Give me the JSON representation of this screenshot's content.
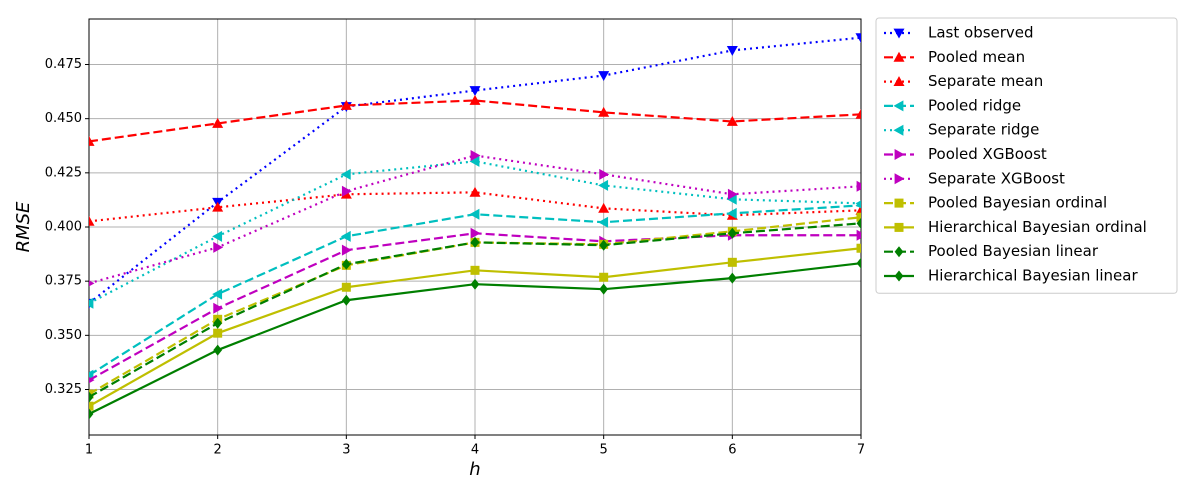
{
  "chart_data": {
    "type": "line",
    "x_label": "h",
    "y_label": "RMSE",
    "x": [
      1,
      2,
      3,
      4,
      5,
      6,
      7
    ],
    "xlim": [
      1,
      7
    ],
    "xticks": [
      1,
      2,
      3,
      4,
      5,
      6,
      7
    ],
    "ylim": [
      0.304,
      0.496
    ],
    "yticks": [
      0.325,
      {
        "value": 0.35,
        "label": "0.350"
      },
      0.375,
      {
        "value": 0.4,
        "label": "0.400"
      },
      0.425,
      {
        "value": 0.45,
        "label": "0.450"
      },
      0.475
    ],
    "grid": true,
    "legend": "outside right",
    "series": [
      {
        "name": "Last observed",
        "color": "#0000ff",
        "linestyle": "dotted",
        "marker": "v",
        "values": [
          0.3648,
          0.4114,
          0.4556,
          0.463,
          0.4699,
          0.4815,
          0.4874
        ]
      },
      {
        "name": "Pooled mean",
        "color": "#ff0000",
        "linestyle": "dashed",
        "marker": "^",
        "values": [
          0.4395,
          0.4478,
          0.4561,
          0.4584,
          0.4529,
          0.4487,
          0.452
        ]
      },
      {
        "name": "Separate mean",
        "color": "#ff0000",
        "linestyle": "dotted",
        "marker": "^",
        "values": [
          0.4026,
          0.4091,
          0.4151,
          0.416,
          0.4086,
          0.4054,
          0.4077
        ]
      },
      {
        "name": "Pooled ridge",
        "color": "#00bfbf",
        "linestyle": "dashed",
        "marker": "<",
        "values": [
          0.3316,
          0.369,
          0.3957,
          0.4059,
          0.4022,
          0.4063,
          0.41
        ]
      },
      {
        "name": "Separate ridge",
        "color": "#00bfbf",
        "linestyle": "dotted",
        "marker": "<",
        "values": [
          0.3648,
          0.3957,
          0.4243,
          0.4303,
          0.4192,
          0.4128,
          0.4109
        ]
      },
      {
        "name": "Pooled XGBoost",
        "color": "#bf00bf",
        "linestyle": "dashed",
        "marker": ">",
        "values": [
          0.3293,
          0.3625,
          0.3893,
          0.3971,
          0.3934,
          0.3962,
          0.3962
        ]
      },
      {
        "name": "Separate XGBoost",
        "color": "#bf00bf",
        "linestyle": "dotted",
        "marker": ">",
        "values": [
          0.374,
          0.3906,
          0.4165,
          0.433,
          0.4243,
          0.4151,
          0.4188
        ]
      },
      {
        "name": "Pooled Bayesian ordinal",
        "color": "#bfbf00",
        "linestyle": "dashed",
        "marker": "s",
        "values": [
          0.3229,
          0.3574,
          0.3823,
          0.3929,
          0.392,
          0.398,
          0.4045
        ]
      },
      {
        "name": "Hierarchical Bayesian ordinal",
        "color": "#bfbf00",
        "linestyle": "solid",
        "marker": "s",
        "values": [
          0.3173,
          0.351,
          0.3722,
          0.38,
          0.3768,
          0.3837,
          0.3902
        ]
      },
      {
        "name": "Pooled Bayesian linear",
        "color": "#007f00",
        "linestyle": "dashed",
        "marker": "D",
        "values": [
          0.3215,
          0.3556,
          0.3828,
          0.3929,
          0.3916,
          0.3971,
          0.4017
        ]
      },
      {
        "name": "Hierarchical Bayesian linear",
        "color": "#007f00",
        "linestyle": "solid",
        "marker": "D",
        "values": [
          0.3137,
          0.3432,
          0.3662,
          0.3736,
          0.3713,
          0.3764,
          0.3833
        ]
      }
    ]
  }
}
